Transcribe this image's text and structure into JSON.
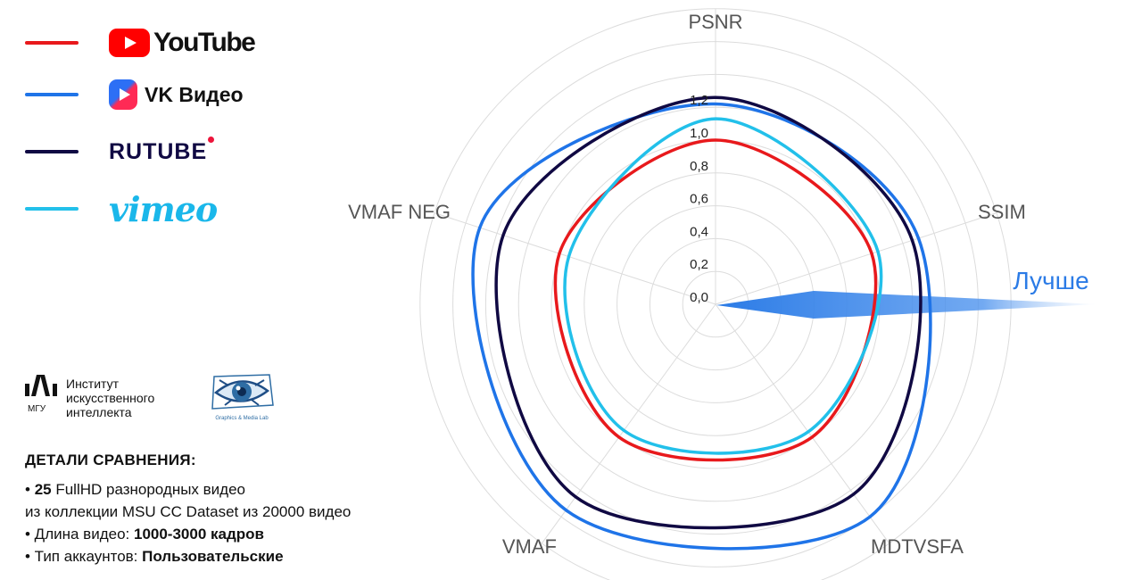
{
  "legend": [
    {
      "name": "YouTube",
      "color": "#e8191c",
      "logo_text": "YouTube",
      "icon": "youtube-play-icon"
    },
    {
      "name": "VK Видео",
      "color": "#1f74e8",
      "logo_text": "VK Видео",
      "icon": "vk-video-play-icon"
    },
    {
      "name": "RUTUBE",
      "color": "#100943",
      "logo_text": "RUTUBE",
      "icon": "rutube-dot-icon"
    },
    {
      "name": "vimeo",
      "color": "#22c0ea",
      "logo_text": "vimeo",
      "icon": "vimeo-wordmark"
    }
  ],
  "organizations": {
    "msu_ai_institute": {
      "name_line1": "Институт",
      "name_line2": "искусственного",
      "name_line3": "интеллекта",
      "short": "МГУ"
    },
    "graphics_media_lab": {
      "name": "Graphics & Media Lab"
    }
  },
  "details": {
    "title": "ДЕТАЛИ СРАВНЕНИЯ:",
    "items": [
      {
        "bullet": "•",
        "bold": "25",
        "text": " FullHD разнородных видео"
      },
      {
        "bullet": "",
        "bold": "",
        "text": "из коллекции MSU CC Dataset из 20000 видео"
      },
      {
        "bullet": "•",
        "text": " Длина видео: ",
        "bold": "1000-3000 кадров"
      },
      {
        "bullet": "•",
        "text": " Тип аккаунтов: ",
        "bold": "Пользовательские"
      }
    ]
  },
  "chart_data": {
    "type": "radar",
    "axes": [
      "PSNR",
      "SSIM",
      "MDTVSFA",
      "VMAF",
      "VMAF NEG"
    ],
    "rlim": [
      0,
      1.8
    ],
    "radial_ticks": [
      0.0,
      0.2,
      0.4,
      0.6,
      0.8,
      1.0,
      1.2
    ],
    "radial_tick_labels": [
      "0,0",
      "0,2",
      "0,4",
      "0,6",
      "0,8",
      "1,0",
      "1,2"
    ],
    "grid_rings": [
      0.2,
      0.4,
      0.6,
      0.8,
      1.0,
      1.2,
      1.4,
      1.6,
      1.8
    ],
    "series": [
      {
        "name": "YouTube",
        "color": "#e8191c",
        "values": [
          1.0,
          1.0,
          1.0,
          1.0,
          1.0
        ]
      },
      {
        "name": "VK Видео",
        "color": "#1f74e8",
        "values": [
          1.22,
          1.3,
          1.6,
          1.55,
          1.51
        ]
      },
      {
        "name": "RUTUBE",
        "color": "#100943",
        "values": [
          1.26,
          1.26,
          1.43,
          1.45,
          1.36
        ]
      },
      {
        "name": "vimeo",
        "color": "#22c0ea",
        "values": [
          1.13,
          1.04,
          0.96,
          0.95,
          0.94
        ]
      }
    ],
    "annotation": {
      "text": "Лучше",
      "color": "#2b7be6"
    }
  }
}
